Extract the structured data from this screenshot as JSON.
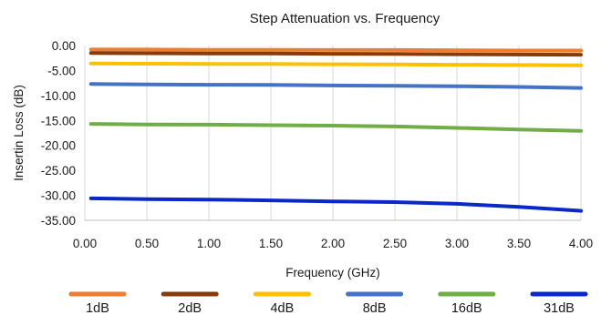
{
  "chart_data": {
    "type": "line",
    "title": "Step Attenuation vs. Frequency",
    "xlabel": "Frequency (GHz)",
    "ylabel": "Insertin Loss (dB)",
    "xlim": [
      0,
      4
    ],
    "ylim": [
      -35,
      0
    ],
    "x_ticks": [
      "0.00",
      "0.50",
      "1.00",
      "1.50",
      "2.00",
      "2.50",
      "3.00",
      "3.50",
      "4.00"
    ],
    "x_tick_values": [
      0,
      0.5,
      1,
      1.5,
      2,
      2.5,
      3,
      3.5,
      4
    ],
    "y_ticks": [
      "0.00",
      "-5.00",
      "-10.00",
      "-15.00",
      "-20.00",
      "-25.00",
      "-30.00",
      "-35.00"
    ],
    "y_tick_values": [
      0,
      -5,
      -10,
      -15,
      -20,
      -25,
      -30,
      -35
    ],
    "grid": "vertical",
    "legend_position": "bottom",
    "x": [
      0.05,
      0.5,
      1.0,
      1.5,
      2.0,
      2.5,
      3.0,
      3.5,
      4.0
    ],
    "series": [
      {
        "name": "1dB",
        "color": "#ED7D31",
        "values": [
          -0.8,
          -0.8,
          -0.85,
          -0.85,
          -0.9,
          -0.9,
          -0.95,
          -1.0,
          -1.0
        ]
      },
      {
        "name": "2dB",
        "color": "#843C0C",
        "values": [
          -1.5,
          -1.55,
          -1.6,
          -1.6,
          -1.65,
          -1.7,
          -1.75,
          -1.8,
          -1.85
        ]
      },
      {
        "name": "4dB",
        "color": "#FFC000",
        "values": [
          -3.6,
          -3.65,
          -3.7,
          -3.7,
          -3.75,
          -3.8,
          -3.85,
          -3.9,
          -3.95
        ]
      },
      {
        "name": "8dB",
        "color": "#4472C4",
        "values": [
          -7.7,
          -7.8,
          -7.85,
          -7.9,
          -8.0,
          -8.05,
          -8.15,
          -8.3,
          -8.5
        ]
      },
      {
        "name": "16dB",
        "color": "#70AD47",
        "values": [
          -15.7,
          -15.8,
          -15.85,
          -15.95,
          -16.05,
          -16.2,
          -16.5,
          -16.8,
          -17.1
        ]
      },
      {
        "name": "31dB",
        "color": "#0A28C8",
        "values": [
          -30.6,
          -30.75,
          -30.85,
          -31.0,
          -31.2,
          -31.35,
          -31.7,
          -32.3,
          -33.1
        ]
      }
    ]
  }
}
